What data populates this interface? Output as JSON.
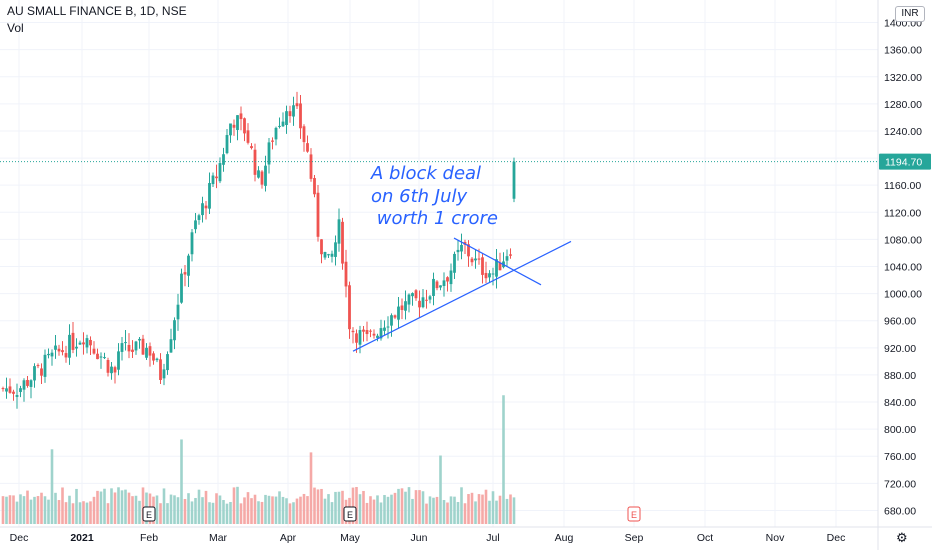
{
  "header": {
    "symbol_line": "AU SMALL FINANCE B, 1D, NSE",
    "volume_label": "Vol",
    "currency": "INR"
  },
  "annotation": {
    "line1": "A block deal",
    "line2": "on 6th July",
    "line3": " worth 1 crore"
  },
  "colors": {
    "up": "#26a69a",
    "down": "#ef5350",
    "up_volume": "#9fd3cc",
    "down_volume": "#f5a9a7",
    "trendline": "#2962ff",
    "price_line": "#26a69a",
    "axis_text": "#131722"
  },
  "chart_data": {
    "type": "candlestick",
    "title": "AU SMALL FINANCE B, 1D, NSE",
    "y_axis": {
      "min": 660,
      "max": 1420,
      "ticks": [
        680,
        720,
        760,
        800,
        840,
        880,
        920,
        960,
        1000,
        1040,
        1080,
        1120,
        1160,
        1200,
        1240,
        1280,
        1320,
        1360,
        1400
      ],
      "tick_labels": [
        "680.00",
        "720.00",
        "760.00",
        "800.00",
        "840.00",
        "880.00",
        "920.00",
        "960.00",
        "1000.00",
        "1040.00",
        "1080.00",
        "1120.00",
        "1160.00",
        "1200.00",
        "1240.00",
        "1280.00",
        "1320.00",
        "1360.00",
        "1400.00"
      ]
    },
    "x_axis": {
      "labels": [
        "Dec",
        "2021",
        "Feb",
        "Mar",
        "Apr",
        "May",
        "Jun",
        "Jul",
        "Aug",
        "Sep",
        "Oct",
        "Nov",
        "Dec"
      ],
      "bold": [
        "2021"
      ]
    },
    "last_price": 1194.7,
    "last_price_label": "1194.70",
    "earnings_markers": [
      "Feb",
      "May",
      "Sep"
    ],
    "earnings_marker_label": "E",
    "anchors": [
      {
        "month": "Dec",
        "price": 860
      },
      {
        "month": "Dec",
        "price": 905
      },
      {
        "month": "Dec",
        "price": 940
      },
      {
        "month": "Dec",
        "price": 880
      },
      {
        "month": "2021",
        "price": 880
      },
      {
        "month": "2021",
        "price": 860
      },
      {
        "month": "2021",
        "price": 900
      },
      {
        "month": "2021",
        "price": 910
      },
      {
        "month": "2021",
        "price": 900
      },
      {
        "month": "Feb",
        "price": 920
      },
      {
        "month": "Feb",
        "price": 880
      },
      {
        "month": "Feb",
        "price": 950
      },
      {
        "month": "Feb",
        "price": 1030
      },
      {
        "month": "Feb",
        "price": 1100
      },
      {
        "month": "Feb",
        "price": 1140
      },
      {
        "month": "Mar",
        "price": 1180
      },
      {
        "month": "Mar",
        "price": 1260
      },
      {
        "month": "Mar",
        "price": 1240
      },
      {
        "month": "Mar",
        "price": 1160
      },
      {
        "month": "Mar",
        "price": 1240
      },
      {
        "month": "Apr",
        "price": 1280
      },
      {
        "month": "Apr",
        "price": 1260
      },
      {
        "month": "Apr",
        "price": 1200
      },
      {
        "month": "Apr",
        "price": 1080
      },
      {
        "month": "Apr",
        "price": 1040
      },
      {
        "month": "Apr",
        "price": 1100
      },
      {
        "month": "May",
        "price": 950
      },
      {
        "month": "May",
        "price": 930
      },
      {
        "month": "May",
        "price": 960
      },
      {
        "month": "May",
        "price": 980
      },
      {
        "month": "Jun",
        "price": 990
      },
      {
        "month": "Jun",
        "price": 1010
      },
      {
        "month": "Jun",
        "price": 1030
      },
      {
        "month": "Jun",
        "price": 1070
      },
      {
        "month": "Jun",
        "price": 1040
      },
      {
        "month": "Jul",
        "price": 1030
      },
      {
        "month": "Jul",
        "price": 1070
      },
      {
        "month": "Jul",
        "price": 1130
      },
      {
        "month": "Jul",
        "price": 1194.7
      }
    ],
    "trendlines": [
      {
        "from": {
          "month": "May",
          "price": 915
        },
        "to": {
          "month": "Aug",
          "price": 1077
        }
      },
      {
        "from": {
          "month": "Jun",
          "price": 1082
        },
        "to": {
          "month": "Aug",
          "price": 1013
        }
      }
    ],
    "grid": true
  }
}
